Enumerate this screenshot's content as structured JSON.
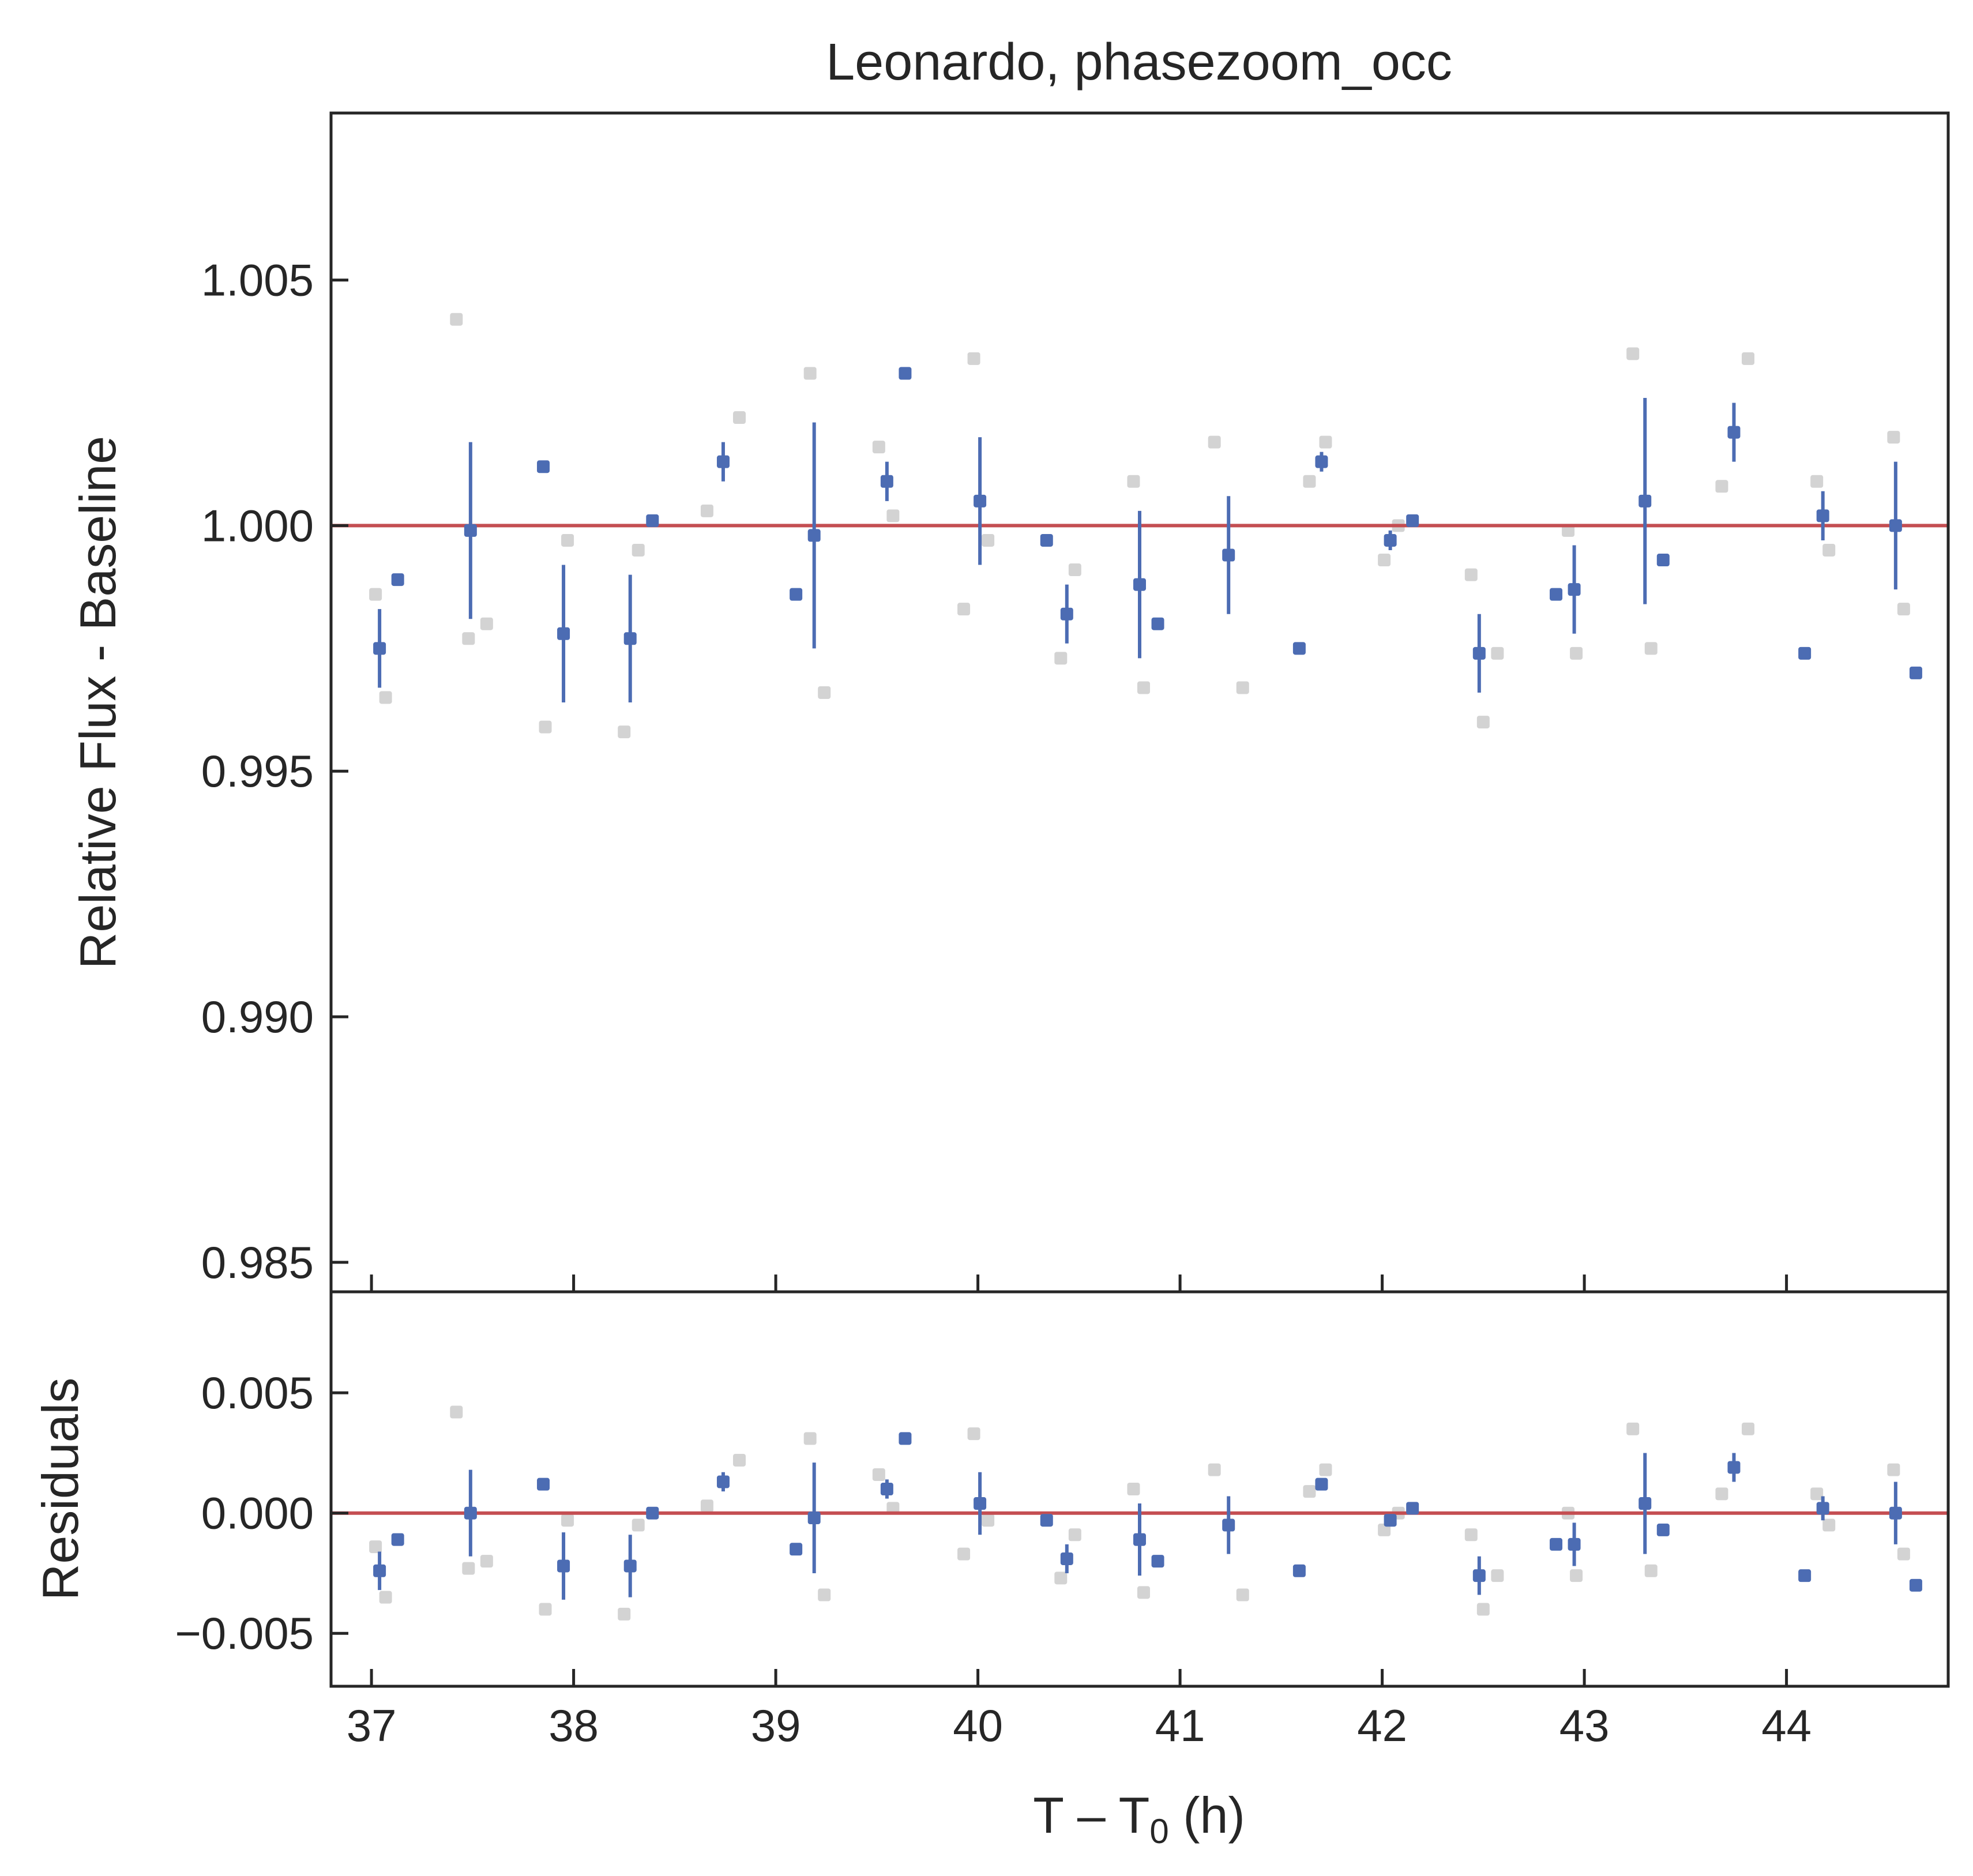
{
  "chart_data": {
    "type": "scatter",
    "title": "Leonardo, phasezoom_occ",
    "colors": {
      "binned": "#4c6cb3",
      "raw": "#d3d3d3",
      "model": "#c44e52",
      "axes": "#262626"
    },
    "panels": [
      {
        "name": "main",
        "ylabel": "Relative Flux - Baseline",
        "xlim": [
          36.8,
          44.8
        ],
        "ylim": [
          0.9844,
          1.0084
        ],
        "yticks": [
          0.985,
          0.99,
          0.995,
          1.0,
          1.005
        ],
        "ytick_labels": [
          "0.985",
          "0.990",
          "0.995",
          "1.000",
          "1.005"
        ],
        "model_y": 1.0,
        "raw_points": [
          [
            37.02,
            0.9986
          ],
          [
            37.07,
            0.9965
          ],
          [
            37.42,
            1.0042
          ],
          [
            37.48,
            0.9977
          ],
          [
            37.57,
            0.998
          ],
          [
            37.86,
            0.9959
          ],
          [
            37.97,
            0.9997
          ],
          [
            38.25,
            0.9958
          ],
          [
            38.32,
            0.9995
          ],
          [
            38.66,
            1.0003
          ],
          [
            38.82,
            1.0022
          ],
          [
            39.17,
            1.0031
          ],
          [
            39.24,
            0.9966
          ],
          [
            39.51,
            1.0016
          ],
          [
            39.58,
            1.0002
          ],
          [
            39.93,
            0.9983
          ],
          [
            39.98,
            1.0034
          ],
          [
            40.05,
            0.9997
          ],
          [
            40.41,
            0.9973
          ],
          [
            40.48,
            0.9991
          ],
          [
            40.77,
            1.0009
          ],
          [
            40.82,
            0.9967
          ],
          [
            41.17,
            1.0017
          ],
          [
            41.31,
            0.9967
          ],
          [
            41.64,
            1.0009
          ],
          [
            41.72,
            1.0017
          ],
          [
            42.01,
            0.9993
          ],
          [
            42.08,
            1.0
          ],
          [
            42.44,
            0.999
          ],
          [
            42.5,
            0.996
          ],
          [
            42.57,
            0.9974
          ],
          [
            42.92,
            0.9999
          ],
          [
            42.96,
            0.9974
          ],
          [
            43.24,
            1.0035
          ],
          [
            43.33,
            0.9975
          ],
          [
            43.68,
            1.0008
          ],
          [
            43.81,
            1.0034
          ],
          [
            44.15,
            1.0009
          ],
          [
            44.21,
            0.9995
          ],
          [
            44.53,
            1.0018
          ],
          [
            44.58,
            0.9983
          ]
        ],
        "binned_points": [
          [
            37.04,
            0.9975,
            0.0008
          ],
          [
            37.13,
            0.9989,
            0
          ],
          [
            37.49,
            0.9999,
            0.0018
          ],
          [
            37.85,
            1.0012,
            0
          ],
          [
            37.95,
            0.9978,
            0.0014
          ],
          [
            38.28,
            0.9977,
            0.0013
          ],
          [
            38.39,
            1.0001,
            0
          ],
          [
            38.74,
            1.0013,
            0.0004
          ],
          [
            39.1,
            0.9986,
            0
          ],
          [
            39.19,
            0.9998,
            0.0023
          ],
          [
            39.55,
            1.0009,
            0.0004
          ],
          [
            39.64,
            1.0031,
            0
          ],
          [
            40.01,
            1.0005,
            0.0013
          ],
          [
            40.34,
            0.9997,
            0
          ],
          [
            40.44,
            0.9982,
            0.0006
          ],
          [
            40.8,
            0.9988,
            0.0015
          ],
          [
            40.89,
            0.998,
            0
          ],
          [
            41.24,
            0.9994,
            0.0012
          ],
          [
            41.59,
            0.9975,
            0
          ],
          [
            41.7,
            1.0013,
            0.0002
          ],
          [
            42.04,
            0.9997,
            0.0002
          ],
          [
            42.15,
            1.0001,
            0
          ],
          [
            42.48,
            0.9974,
            0.0008
          ],
          [
            42.86,
            0.9986,
            0
          ],
          [
            42.95,
            0.9987,
            0.0009
          ],
          [
            43.3,
            1.0005,
            0.0021
          ],
          [
            43.39,
            0.9993,
            0
          ],
          [
            43.74,
            1.0019,
            0.0006
          ],
          [
            44.09,
            0.9974,
            0
          ],
          [
            44.18,
            1.0002,
            0.0005
          ],
          [
            44.54,
            1.0,
            0.0013
          ],
          [
            44.64,
            0.997,
            0
          ]
        ]
      },
      {
        "name": "residuals",
        "ylabel": "Residuals",
        "xlabel": "T – T",
        "xlabel_sub": "0",
        "xlabel_tail": " (h)",
        "xlim": [
          36.8,
          44.8
        ],
        "ylim": [
          -0.0072,
          0.0092
        ],
        "yticks": [
          -0.005,
          0.0,
          0.005
        ],
        "ytick_labels": [
          "−0.005",
          "0.000",
          "0.005"
        ],
        "xticks": [
          37,
          38,
          39,
          40,
          41,
          42,
          43,
          44
        ],
        "xtick_labels": [
          "37",
          "38",
          "39",
          "40",
          "41",
          "42",
          "43",
          "44"
        ],
        "model_y": 0.0,
        "raw_points": [
          [
            37.02,
            -0.0014
          ],
          [
            37.07,
            -0.0035
          ],
          [
            37.42,
            0.0042
          ],
          [
            37.48,
            -0.0023
          ],
          [
            37.57,
            -0.002
          ],
          [
            37.86,
            -0.004
          ],
          [
            37.97,
            -0.0003
          ],
          [
            38.25,
            -0.0042
          ],
          [
            38.32,
            -0.0005
          ],
          [
            38.66,
            0.0003
          ],
          [
            38.82,
            0.0022
          ],
          [
            39.17,
            0.0031
          ],
          [
            39.24,
            -0.0034
          ],
          [
            39.51,
            0.0016
          ],
          [
            39.58,
            0.0002
          ],
          [
            39.93,
            -0.0017
          ],
          [
            39.98,
            0.0033
          ],
          [
            40.05,
            -0.0003
          ],
          [
            40.41,
            -0.0027
          ],
          [
            40.48,
            -0.0009
          ],
          [
            40.77,
            0.001
          ],
          [
            40.82,
            -0.0033
          ],
          [
            41.17,
            0.0018
          ],
          [
            41.31,
            -0.0034
          ],
          [
            41.64,
            0.0009
          ],
          [
            41.72,
            0.0018
          ],
          [
            42.01,
            -0.0007
          ],
          [
            42.08,
            0.0
          ],
          [
            42.44,
            -0.0009
          ],
          [
            42.5,
            -0.004
          ],
          [
            42.57,
            -0.0026
          ],
          [
            42.92,
            0.0
          ],
          [
            42.96,
            -0.0026
          ],
          [
            43.24,
            0.0035
          ],
          [
            43.33,
            -0.0024
          ],
          [
            43.68,
            0.0008
          ],
          [
            43.81,
            0.0035
          ],
          [
            44.15,
            0.0008
          ],
          [
            44.21,
            -0.0005
          ],
          [
            44.53,
            0.0018
          ],
          [
            44.58,
            -0.0017
          ]
        ],
        "binned_points": [
          [
            37.04,
            -0.0024,
            0.0008
          ],
          [
            37.13,
            -0.0011,
            0
          ],
          [
            37.49,
            0.0,
            0.0018
          ],
          [
            37.85,
            0.0012,
            0
          ],
          [
            37.95,
            -0.0022,
            0.0014
          ],
          [
            38.28,
            -0.0022,
            0.0013
          ],
          [
            38.39,
            0.0,
            0
          ],
          [
            38.74,
            0.0013,
            0.0004
          ],
          [
            39.1,
            -0.0015,
            0
          ],
          [
            39.19,
            -0.0002,
            0.0023
          ],
          [
            39.55,
            0.001,
            0.0004
          ],
          [
            39.64,
            0.0031,
            0
          ],
          [
            40.01,
            0.0004,
            0.0013
          ],
          [
            40.34,
            -0.0003,
            0
          ],
          [
            40.44,
            -0.0019,
            0.0006
          ],
          [
            40.8,
            -0.0011,
            0.0015
          ],
          [
            40.89,
            -0.002,
            0
          ],
          [
            41.24,
            -0.0005,
            0.0012
          ],
          [
            41.59,
            -0.0024,
            0
          ],
          [
            41.7,
            0.0012,
            0.0002
          ],
          [
            42.04,
            -0.0003,
            0.0002
          ],
          [
            42.15,
            0.0002,
            0
          ],
          [
            42.48,
            -0.0026,
            0.0008
          ],
          [
            42.86,
            -0.0013,
            0
          ],
          [
            42.95,
            -0.0013,
            0.0009
          ],
          [
            43.3,
            0.0004,
            0.0021
          ],
          [
            43.39,
            -0.0007,
            0
          ],
          [
            43.74,
            0.0019,
            0.0006
          ],
          [
            44.09,
            -0.0026,
            0
          ],
          [
            44.18,
            0.0002,
            0.0005
          ],
          [
            44.54,
            0.0,
            0.0013
          ],
          [
            44.64,
            -0.003,
            0
          ]
        ]
      }
    ]
  }
}
